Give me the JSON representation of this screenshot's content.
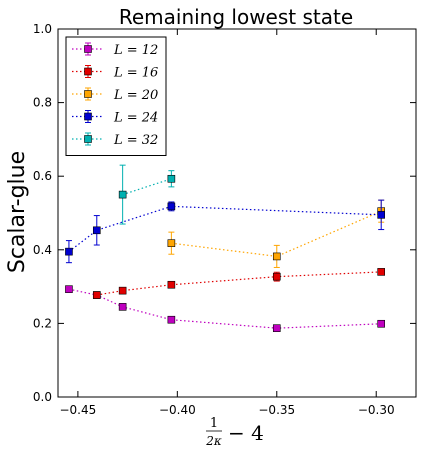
{
  "chart_data": {
    "type": "scatter",
    "title": "Remaining lowest state",
    "ylabel": "Scalar-glue",
    "xlabel": {
      "num": "1",
      "den": "2κ",
      "rest": "− 4"
    },
    "xlim": [
      -0.46,
      -0.28
    ],
    "ylim": [
      0.0,
      1.0
    ],
    "xticks": [
      -0.45,
      -0.4,
      -0.35,
      -0.3
    ],
    "xtick_labels": [
      "−0.45",
      "−0.40",
      "−0.35",
      "−0.30"
    ],
    "yticks": [
      0.0,
      0.2,
      0.4,
      0.6,
      0.8,
      1.0
    ],
    "ytick_labels": [
      "0.0",
      "0.2",
      "0.4",
      "0.6",
      "0.8",
      "1.0"
    ],
    "legend_placement": "top-left",
    "series": [
      {
        "name": "L = 12",
        "color": "#bf00bf",
        "points": [
          {
            "x": -0.4545,
            "y": 0.293,
            "err": 0.005
          },
          {
            "x": -0.4405,
            "y": 0.277,
            "err": 0.005
          },
          {
            "x": -0.4275,
            "y": 0.245,
            "err": 0.006
          },
          {
            "x": -0.403,
            "y": 0.21,
            "err": 0.005
          },
          {
            "x": -0.35,
            "y": 0.187,
            "err": 0.004
          },
          {
            "x": -0.2975,
            "y": 0.199,
            "err": 0.004
          }
        ]
      },
      {
        "name": "L = 16",
        "color": "#e00000",
        "points": [
          {
            "x": -0.4405,
            "y": 0.277,
            "err": 0.004
          },
          {
            "x": -0.4275,
            "y": 0.289,
            "err": 0.005
          },
          {
            "x": -0.403,
            "y": 0.305,
            "err": 0.005
          },
          {
            "x": -0.35,
            "y": 0.327,
            "err": 0.012
          },
          {
            "x": -0.2975,
            "y": 0.34,
            "err": 0.006
          }
        ]
      },
      {
        "name": "L = 20",
        "color": "#ffa500",
        "points": [
          {
            "x": -0.403,
            "y": 0.418,
            "err": 0.03
          },
          {
            "x": -0.35,
            "y": 0.382,
            "err": 0.03
          },
          {
            "x": -0.2975,
            "y": 0.505,
            "err": 0.03
          }
        ]
      },
      {
        "name": "L = 24",
        "color": "#0000d0",
        "points": [
          {
            "x": -0.4545,
            "y": 0.395,
            "err": 0.03
          },
          {
            "x": -0.4405,
            "y": 0.453,
            "err": 0.04
          },
          {
            "x": -0.403,
            "y": 0.518,
            "err": 0.012
          },
          {
            "x": -0.2975,
            "y": 0.495,
            "err": 0.04
          }
        ]
      },
      {
        "name": "L = 32",
        "color": "#00b0b0",
        "points": [
          {
            "x": -0.4275,
            "y": 0.55,
            "err": 0.08
          },
          {
            "x": -0.403,
            "y": 0.593,
            "err": 0.022
          }
        ]
      }
    ]
  }
}
